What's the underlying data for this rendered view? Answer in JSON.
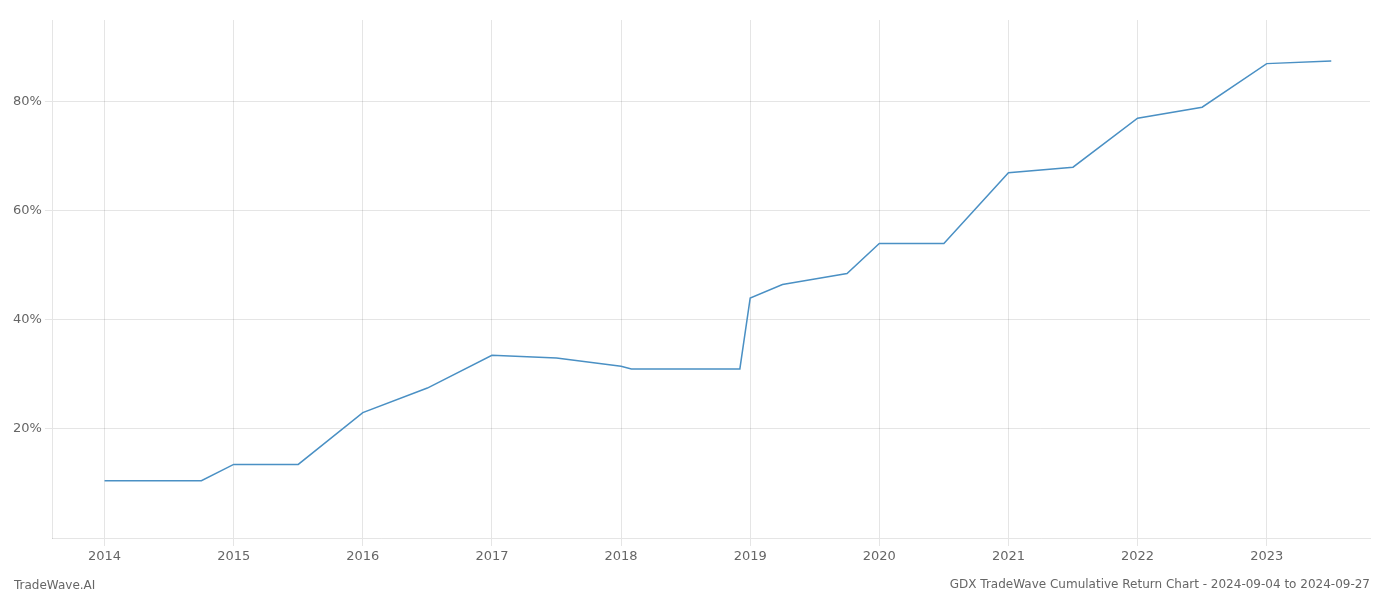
{
  "chart_data": {
    "type": "line",
    "title": "GDX TradeWave Cumulative Return Chart - 2024-09-04 to 2024-09-27",
    "annotations": [
      "TradeWave.AI"
    ],
    "x": [
      2014.0,
      2014.75,
      2015.0,
      2015.5,
      2016.0,
      2016.5,
      2017.0,
      2017.5,
      2018.0,
      2018.08,
      2018.5,
      2018.92,
      2019.0,
      2019.25,
      2019.5,
      2019.75,
      2020.0,
      2020.25,
      2020.5,
      2021.0,
      2021.5,
      2022.0,
      2022.5,
      2023.0,
      2023.5
    ],
    "values": [
      10.5,
      10.5,
      13.5,
      13.5,
      23.0,
      27.5,
      33.5,
      33.0,
      31.5,
      31.0,
      31.0,
      31.0,
      44.0,
      46.5,
      47.5,
      48.5,
      54.0,
      54.0,
      54.0,
      67.0,
      68.0,
      77.0,
      79.0,
      87.0,
      87.5
    ],
    "color": "#4a90c4",
    "xlim": [
      2013.6,
      2023.8
    ],
    "ylim": [
      0,
      95
    ],
    "xticks": [
      2014,
      2015,
      2016,
      2017,
      2018,
      2019,
      2020,
      2021,
      2022,
      2023
    ],
    "yticks": [
      {
        "value": 20,
        "label": "20%"
      },
      {
        "value": 40,
        "label": "40%"
      },
      {
        "value": 60,
        "label": "60%"
      },
      {
        "value": 80,
        "label": "80%"
      }
    ],
    "grid": true
  }
}
